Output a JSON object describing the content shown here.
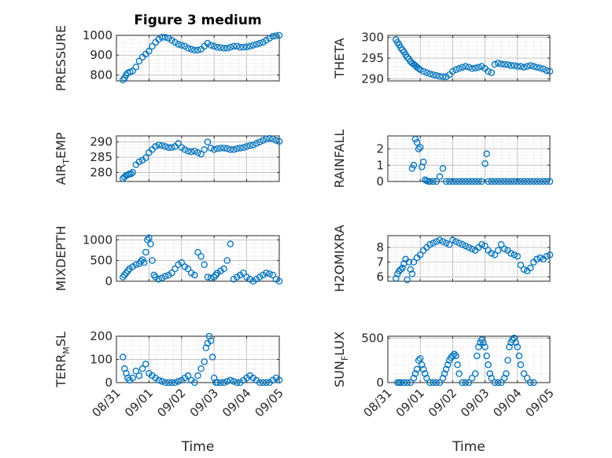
{
  "figure": {
    "title": "Figure 3 medium",
    "marker_color": "#0072BD"
  },
  "chart_data": [
    {
      "type": "scatter",
      "name": "pressure",
      "ylabel": "PRESSURE",
      "ylim": [
        770,
        1000
      ],
      "yticks": [
        800,
        900,
        1000
      ],
      "xlim": [
        0,
        5
      ],
      "xticks": [],
      "xticklabels": [],
      "xlabel": "",
      "title": "Figure 3 medium",
      "grid": true,
      "x": [
        0.2,
        0.25,
        0.3,
        0.35,
        0.42,
        0.5,
        0.6,
        0.7,
        0.8,
        0.9,
        1.0,
        1.1,
        1.2,
        1.3,
        1.4,
        1.5,
        1.6,
        1.7,
        1.8,
        1.9,
        2.0,
        2.1,
        2.2,
        2.3,
        2.4,
        2.5,
        2.6,
        2.7,
        2.8,
        2.9,
        3.0,
        3.1,
        3.2,
        3.3,
        3.4,
        3.5,
        3.6,
        3.7,
        3.8,
        3.9,
        4.0,
        4.1,
        4.2,
        4.3,
        4.4,
        4.5,
        4.6,
        4.7,
        4.8,
        4.9,
        5.0
      ],
      "y": [
        775,
        785,
        800,
        810,
        815,
        820,
        840,
        870,
        890,
        905,
        920,
        945,
        965,
        980,
        990,
        990,
        985,
        975,
        965,
        955,
        950,
        945,
        935,
        930,
        925,
        925,
        930,
        945,
        960,
        950,
        945,
        940,
        938,
        935,
        935,
        940,
        945,
        945,
        940,
        940,
        942,
        945,
        950,
        955,
        960,
        965,
        975,
        985,
        995,
        998,
        1000
      ]
    },
    {
      "type": "scatter",
      "name": "theta",
      "ylabel": "THETA",
      "ylim": [
        289.5,
        300.5
      ],
      "yticks": [
        290,
        295,
        300
      ],
      "xlim": [
        0,
        5
      ],
      "xticks": [],
      "xticklabels": [],
      "xlabel": "",
      "grid": true,
      "x": [
        0.25,
        0.3,
        0.35,
        0.4,
        0.45,
        0.5,
        0.55,
        0.6,
        0.65,
        0.7,
        0.75,
        0.8,
        0.85,
        0.9,
        0.95,
        1.0,
        1.1,
        1.2,
        1.3,
        1.4,
        1.5,
        1.6,
        1.7,
        1.8,
        1.9,
        2.0,
        2.1,
        2.2,
        2.3,
        2.4,
        2.5,
        2.6,
        2.7,
        2.8,
        2.9,
        3.0,
        3.1,
        3.2,
        3.3,
        3.4,
        3.5,
        3.6,
        3.7,
        3.8,
        3.9,
        4.0,
        4.1,
        4.2,
        4.3,
        4.4,
        4.5,
        4.6,
        4.7,
        4.8,
        4.9,
        5.0
      ],
      "y": [
        299.5,
        298.8,
        298.2,
        297.5,
        297,
        296.5,
        295.8,
        295.2,
        294.8,
        294.2,
        293.8,
        293.5,
        293.2,
        292.8,
        292.5,
        292.2,
        291.8,
        291.5,
        291.2,
        291,
        290.8,
        290.6,
        290.5,
        290.5,
        291,
        291.8,
        292.2,
        292.5,
        292.8,
        293,
        292.8,
        292.5,
        292.6,
        292.8,
        293,
        292.5,
        291.8,
        291.5,
        293.5,
        293.8,
        293.6,
        293.5,
        293.4,
        293.2,
        293.2,
        293,
        293,
        292.8,
        293,
        293.2,
        293,
        292.8,
        292.6,
        292.4,
        292,
        291.8
      ]
    },
    {
      "type": "scatter",
      "name": "air-temp",
      "ylabel": "AIR_TEMP",
      "ylim": [
        277,
        292
      ],
      "yticks": [
        280,
        285,
        290
      ],
      "xlim": [
        0,
        5
      ],
      "xticks": [],
      "xticklabels": [],
      "xlabel": "",
      "grid": true,
      "x": [
        0.2,
        0.25,
        0.3,
        0.35,
        0.4,
        0.45,
        0.5,
        0.6,
        0.7,
        0.8,
        0.9,
        1.0,
        1.1,
        1.2,
        1.3,
        1.4,
        1.5,
        1.6,
        1.7,
        1.8,
        1.9,
        2.0,
        2.1,
        2.2,
        2.3,
        2.4,
        2.5,
        2.6,
        2.7,
        2.8,
        2.9,
        3.0,
        3.1,
        3.2,
        3.3,
        3.4,
        3.5,
        3.6,
        3.7,
        3.8,
        3.9,
        4.0,
        4.1,
        4.2,
        4.3,
        4.4,
        4.5,
        4.6,
        4.7,
        4.8,
        4.9,
        5.0
      ],
      "y": [
        278,
        278.5,
        279,
        279.2,
        279.5,
        279.5,
        280,
        282.5,
        283.5,
        284,
        284.8,
        286.5,
        287.5,
        288.5,
        289,
        288.8,
        288.5,
        288.2,
        288.2,
        288.5,
        289.5,
        288.2,
        287.5,
        287,
        286.8,
        287,
        286.5,
        286,
        287.5,
        290,
        288,
        287.5,
        287.8,
        288,
        288,
        287.8,
        287.5,
        287.5,
        287.8,
        288,
        288.2,
        288.5,
        288.8,
        289,
        289.5,
        290,
        290.5,
        291,
        291.2,
        291,
        290.5,
        290.2
      ]
    },
    {
      "type": "scatter",
      "name": "rainfall",
      "ylabel": "RAINFALL",
      "ylim": [
        0,
        2.8
      ],
      "yticks": [
        0,
        1,
        2
      ],
      "xlim": [
        0,
        5
      ],
      "xticks": [],
      "xticklabels": [],
      "xlabel": "",
      "grid": true,
      "x": [
        0.75,
        0.8,
        0.85,
        0.9,
        0.95,
        1.0,
        1.05,
        1.1,
        1.15,
        1.2,
        1.25,
        1.3,
        1.4,
        1.5,
        1.6,
        1.7,
        1.8,
        1.9,
        2.0,
        2.1,
        2.2,
        2.3,
        2.4,
        2.5,
        2.6,
        2.7,
        2.8,
        2.9,
        3.0,
        3.05,
        3.1,
        3.2,
        3.3,
        3.4,
        3.5,
        3.6,
        3.7,
        3.8,
        3.9,
        4.0,
        4.1,
        4.2,
        4.3,
        4.4,
        4.5,
        4.6,
        4.7,
        4.8,
        4.9,
        5.0
      ],
      "y": [
        0.8,
        1.0,
        2.6,
        2.4,
        2.0,
        2.1,
        0.9,
        1.2,
        0.1,
        0.05,
        0,
        0,
        0,
        0,
        0.3,
        0.8,
        0,
        0,
        0,
        0,
        0,
        0,
        0,
        0,
        0,
        0,
        0,
        0,
        1.1,
        1.7,
        0,
        0,
        0,
        0,
        0,
        0,
        0,
        0,
        0,
        0,
        0,
        0,
        0,
        0,
        0,
        0,
        0,
        0,
        0,
        0
      ]
    },
    {
      "type": "scatter",
      "name": "mixdepth",
      "ylabel": "MIXDEPTH",
      "ylim": [
        0,
        1100
      ],
      "yticks": [
        0,
        500,
        1000
      ],
      "xlim": [
        0,
        5
      ],
      "xticks": [],
      "xticklabels": [],
      "xlabel": "",
      "grid": true,
      "x": [
        0.2,
        0.25,
        0.3,
        0.35,
        0.4,
        0.5,
        0.6,
        0.7,
        0.75,
        0.8,
        0.85,
        0.9,
        0.95,
        1.0,
        1.05,
        1.1,
        1.15,
        1.2,
        1.3,
        1.4,
        1.5,
        1.6,
        1.7,
        1.8,
        1.9,
        2.0,
        2.1,
        2.2,
        2.3,
        2.4,
        2.5,
        2.6,
        2.7,
        2.8,
        2.9,
        3.0,
        3.05,
        3.1,
        3.2,
        3.3,
        3.4,
        3.5,
        3.6,
        3.7,
        3.8,
        3.9,
        4.0,
        4.1,
        4.2,
        4.3,
        4.4,
        4.5,
        4.6,
        4.7,
        4.8,
        4.9,
        5.0
      ],
      "y": [
        100,
        150,
        200,
        250,
        300,
        350,
        400,
        420,
        480,
        520,
        450,
        700,
        1000,
        1050,
        900,
        500,
        150,
        100,
        50,
        80,
        120,
        150,
        200,
        300,
        400,
        450,
        350,
        300,
        200,
        150,
        700,
        600,
        400,
        100,
        80,
        100,
        150,
        200,
        250,
        300,
        500,
        900,
        50,
        100,
        150,
        200,
        100,
        50,
        0,
        50,
        100,
        150,
        200,
        180,
        150,
        50,
        0
      ]
    },
    {
      "type": "scatter",
      "name": "h2omixra",
      "ylabel": "H2OMIXRA",
      "ylim": [
        5.7,
        8.8
      ],
      "yticks": [
        6,
        7,
        8
      ],
      "xlim": [
        0,
        5
      ],
      "xticks": [],
      "xticklabels": [],
      "xlabel": "",
      "grid": true,
      "x": [
        0.25,
        0.3,
        0.35,
        0.4,
        0.45,
        0.5,
        0.55,
        0.6,
        0.65,
        0.7,
        0.75,
        0.8,
        0.9,
        1.0,
        1.1,
        1.2,
        1.3,
        1.4,
        1.5,
        1.6,
        1.7,
        1.8,
        1.9,
        2.0,
        2.1,
        2.2,
        2.3,
        2.4,
        2.5,
        2.6,
        2.7,
        2.8,
        2.9,
        3.0,
        3.1,
        3.2,
        3.3,
        3.4,
        3.5,
        3.6,
        3.7,
        3.8,
        3.9,
        4.0,
        4.1,
        4.2,
        4.3,
        4.4,
        4.5,
        4.6,
        4.7,
        4.8,
        4.9,
        5.0
      ],
      "y": [
        5.9,
        6.2,
        6.4,
        6.5,
        6.6,
        6.9,
        7.2,
        5.8,
        7.0,
        6.5,
        6.2,
        7.0,
        7.3,
        7.5,
        7.8,
        8.0,
        8.2,
        8.3,
        8.4,
        8.5,
        8.4,
        8.3,
        8.2,
        8.5,
        8.4,
        8.3,
        8.2,
        8.1,
        8.0,
        7.9,
        7.8,
        8.0,
        8.2,
        8.1,
        7.8,
        7.6,
        7.5,
        7.8,
        8.2,
        7.9,
        7.8,
        7.6,
        7.5,
        7.4,
        6.8,
        6.5,
        6.4,
        6.6,
        7.0,
        7.2,
        7.3,
        7.2,
        7.4,
        7.5
      ]
    },
    {
      "type": "scatter",
      "name": "terr-msl",
      "ylabel": "TERR_MSL",
      "ylim": [
        0,
        200
      ],
      "yticks": [
        0,
        100,
        200
      ],
      "xlim": [
        0,
        5
      ],
      "xticks": [
        0,
        1,
        2,
        3,
        4,
        5
      ],
      "xticklabels": [
        "08/31",
        "09/01",
        "09/02",
        "09/03",
        "09/04",
        "09/05"
      ],
      "xlabel": "Time",
      "grid": true,
      "x": [
        0.2,
        0.25,
        0.3,
        0.35,
        0.4,
        0.5,
        0.6,
        0.7,
        0.8,
        0.9,
        1.0,
        1.1,
        1.2,
        1.3,
        1.4,
        1.5,
        1.6,
        1.7,
        1.8,
        1.9,
        2.0,
        2.1,
        2.2,
        2.3,
        2.4,
        2.5,
        2.6,
        2.7,
        2.75,
        2.8,
        2.85,
        2.9,
        2.95,
        3.0,
        3.05,
        3.1,
        3.2,
        3.3,
        3.4,
        3.5,
        3.6,
        3.7,
        3.8,
        3.9,
        4.0,
        4.1,
        4.2,
        4.3,
        4.4,
        4.5,
        4.6,
        4.7,
        4.8,
        4.9,
        5.0
      ],
      "y": [
        110,
        60,
        40,
        20,
        10,
        20,
        50,
        30,
        60,
        80,
        40,
        30,
        20,
        10,
        5,
        0,
        0,
        0,
        0,
        5,
        10,
        20,
        30,
        10,
        0,
        30,
        60,
        90,
        150,
        170,
        200,
        180,
        110,
        20,
        0,
        0,
        0,
        0,
        5,
        10,
        5,
        0,
        0,
        10,
        20,
        30,
        20,
        10,
        0,
        0,
        0,
        0,
        10,
        20,
        10
      ]
    },
    {
      "type": "scatter",
      "name": "sun-flux",
      "ylabel": "SUN_FLUX",
      "ylim": [
        0,
        520
      ],
      "yticks": [
        0,
        500
      ],
      "xlim": [
        0,
        5
      ],
      "xticks": [
        0,
        1,
        2,
        3,
        4,
        5
      ],
      "xticklabels": [
        "08/31",
        "09/01",
        "09/02",
        "09/03",
        "09/04",
        "09/05"
      ],
      "xlabel": "Time",
      "grid": true,
      "x": [
        0.3,
        0.35,
        0.4,
        0.5,
        0.6,
        0.7,
        0.8,
        0.85,
        0.9,
        0.95,
        1.0,
        1.05,
        1.1,
        1.15,
        1.2,
        1.3,
        1.4,
        1.5,
        1.6,
        1.7,
        1.75,
        1.8,
        1.85,
        1.9,
        1.95,
        2.0,
        2.05,
        2.1,
        2.15,
        2.2,
        2.3,
        2.4,
        2.5,
        2.6,
        2.7,
        2.75,
        2.8,
        2.85,
        2.9,
        2.95,
        3.0,
        3.05,
        3.1,
        3.15,
        3.2,
        3.3,
        3.4,
        3.5,
        3.6,
        3.65,
        3.7,
        3.75,
        3.8,
        3.85,
        3.9,
        3.95,
        4.0,
        4.05,
        4.1,
        4.2,
        4.3,
        4.4,
        4.5
      ],
      "y": [
        0,
        0,
        0,
        0,
        0,
        0,
        50,
        100,
        150,
        250,
        270,
        200,
        150,
        100,
        50,
        0,
        0,
        0,
        0,
        50,
        100,
        150,
        200,
        250,
        280,
        300,
        320,
        300,
        200,
        100,
        0,
        0,
        0,
        50,
        100,
        300,
        400,
        450,
        480,
        450,
        400,
        300,
        200,
        100,
        50,
        0,
        0,
        0,
        50,
        100,
        250,
        400,
        450,
        480,
        500,
        450,
        400,
        300,
        200,
        100,
        50,
        0,
        0
      ]
    }
  ]
}
